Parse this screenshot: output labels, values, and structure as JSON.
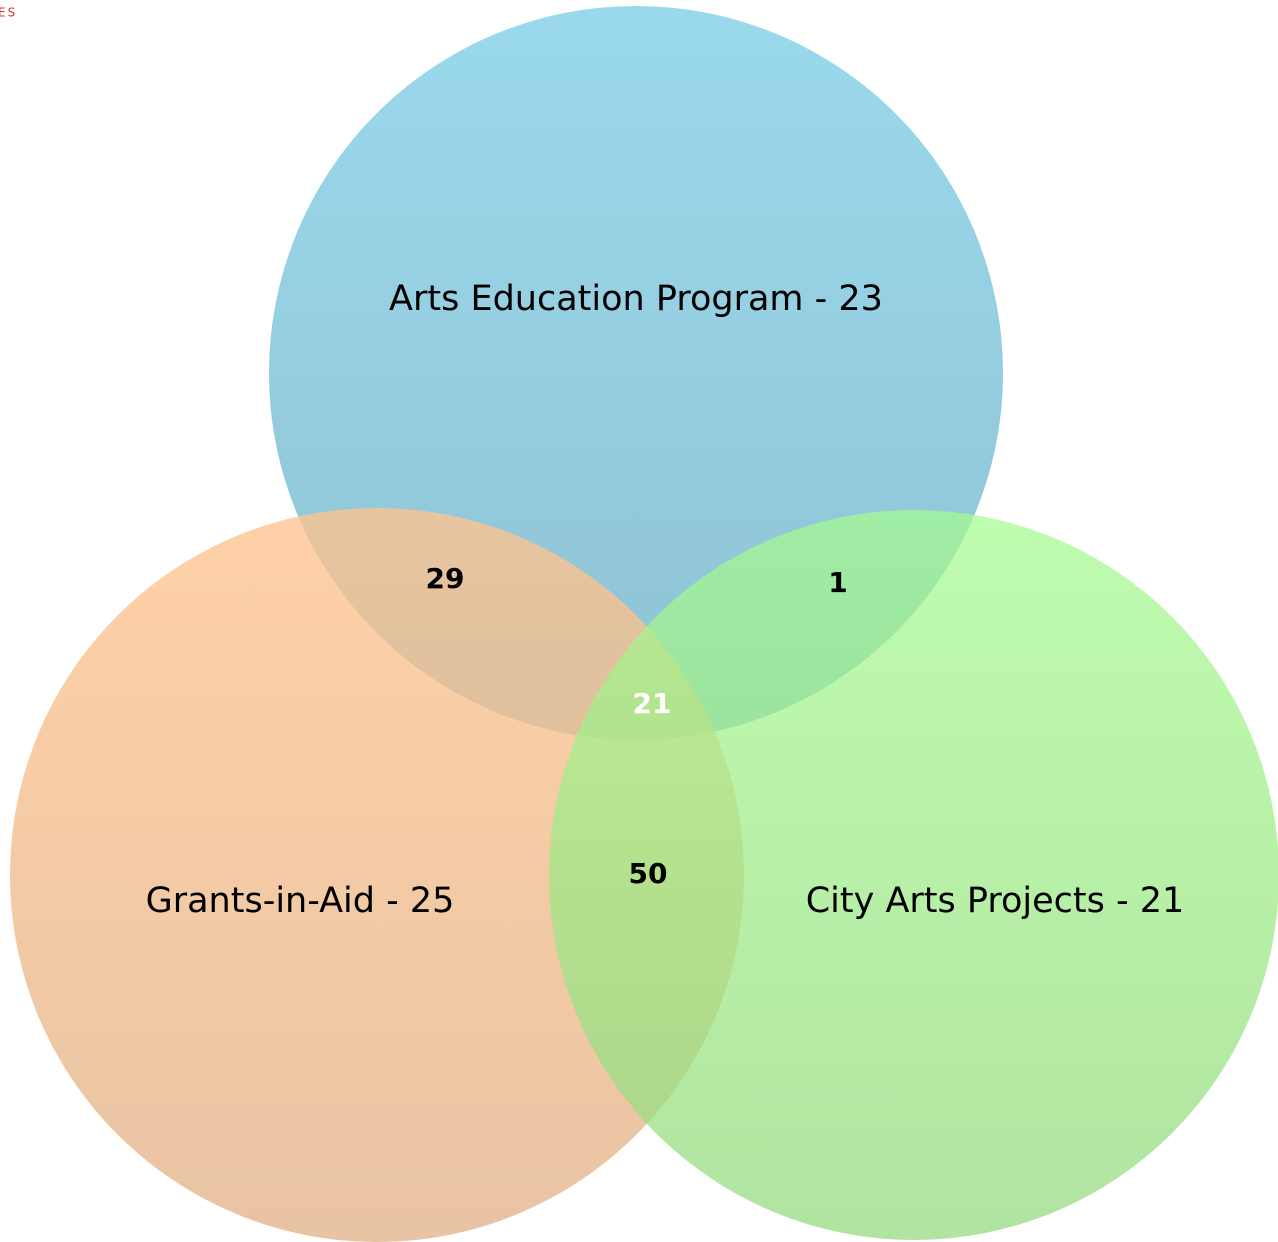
{
  "corner_text": "ES",
  "sets": [
    {
      "label": "Arts Education Program - 23"
    },
    {
      "label": "Grants-in-Aid - 25"
    },
    {
      "label": "City Arts Projects - 21"
    }
  ],
  "intersections": [
    {
      "value": 29
    },
    {
      "value": 1
    },
    {
      "value": 21
    },
    {
      "value": 50
    }
  ]
}
